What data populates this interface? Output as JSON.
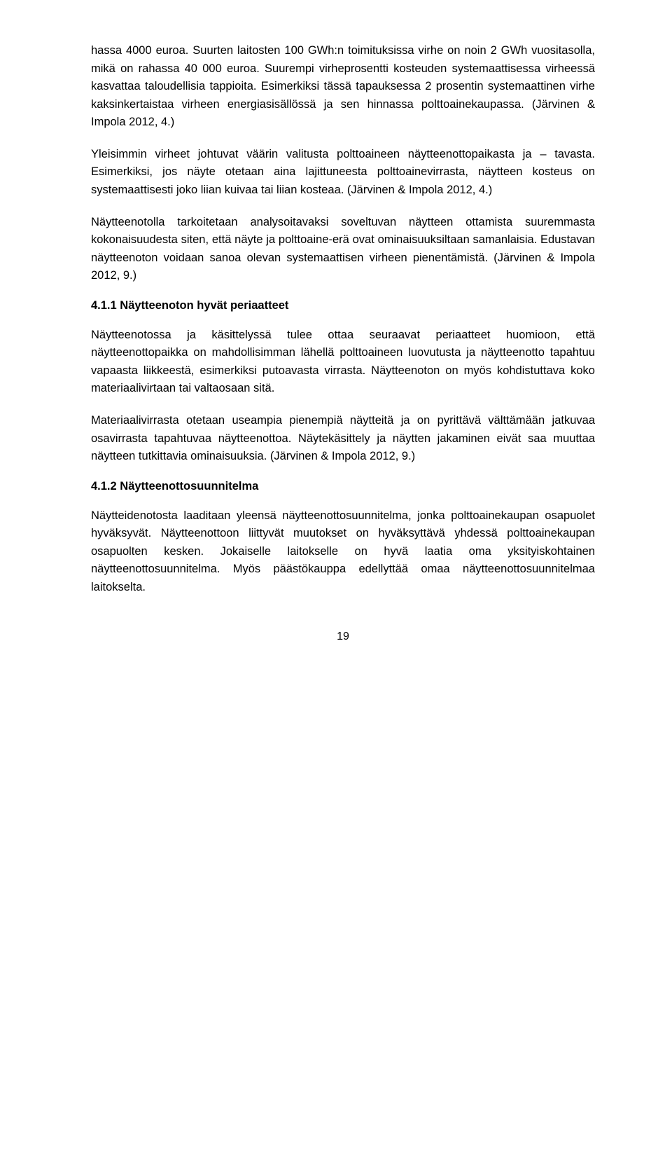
{
  "paragraphs": {
    "p1": "hassa 4000 euroa. Suurten laitosten 100 GWh:n toimituksissa virhe on noin 2 GWh vuositasolla, mikä on rahassa 40 000 euroa. Suurempi virheprosentti kosteuden systemaattisessa virheessä kasvattaa taloudellisia tappioita. Esimerkiksi tässä tapauksessa 2 prosentin systemaattinen virhe kaksinkertaistaa virheen energiasisällössä ja sen hinnassa polttoainekaupassa. (Järvinen & Impola 2012, 4.)",
    "p2": "Yleisimmin virheet johtuvat väärin valitusta polttoaineen näytteenottopaikasta ja – tavasta. Esimerkiksi, jos näyte otetaan aina lajittuneesta polttoainevirrasta, näytteen kosteus on systemaattisesti joko liian kuivaa tai liian kosteaa. (Järvinen & Impola 2012, 4.)",
    "p3": "Näytteenotolla tarkoitetaan analysoitavaksi soveltuvan näytteen ottamista suuremmasta kokonaisuudesta siten, että näyte ja polttoaine-erä ovat ominaisuuksiltaan samanlaisia. Edustavan näytteenoton voidaan sanoa olevan systemaattisen virheen pienentämistä. (Järvinen & Impola 2012, 9.)",
    "p4": "Näytteenotossa ja käsittelyssä tulee ottaa seuraavat periaatteet huomioon, että näytteenottopaikka on mahdollisimman lähellä polttoaineen luovutusta ja näytteenotto tapahtuu vapaasta liikkeestä, esimerkiksi putoavasta virrasta. Näytteenoton on myös kohdistuttava koko materiaalivirtaan tai valtaosaan sitä.",
    "p5": "Materiaalivirrasta otetaan useampia pienempiä näytteitä ja on pyrittävä välttämään jatkuvaa osavirrasta tapahtuvaa näytteenottoa. Näytekäsittely ja näytten jakaminen eivät saa muuttaa näytteen tutkittavia ominaisuuksia. (Järvinen & Impola 2012, 9.)",
    "p6": "Näytteidenotosta laaditaan yleensä näytteenottosuunnitelma, jonka polttoainekaupan osapuolet hyväksyvät. Näytteenottoon liittyvät muutokset on hyväksyttävä yhdessä polttoainekaupan osapuolten kesken. Jokaiselle laitokselle on hyvä laatia oma yksityiskohtainen näytteenottosuunnitelma. Myös päästökauppa edellyttää omaa näytteenottosuunnitelmaa laitokselta."
  },
  "headings": {
    "h411": "4.1.1 Näytteenoton hyvät periaatteet",
    "h412": "4.1.2 Näytteenottosuunnitelma"
  },
  "pageNumber": "19"
}
